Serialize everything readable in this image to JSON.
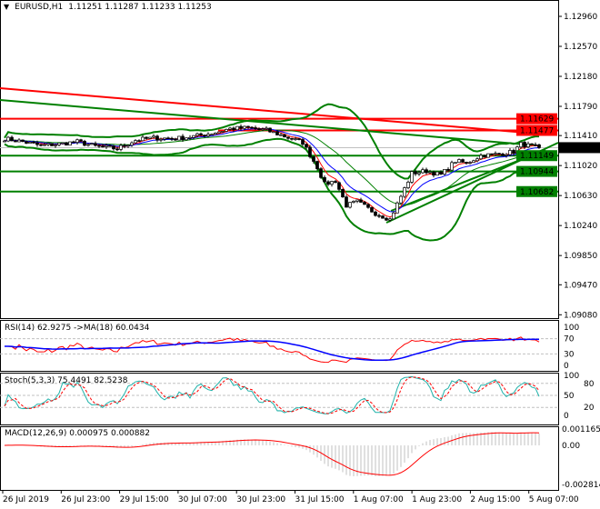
{
  "header": {
    "symbol": "EURUSD,H1",
    "ohlc": "1.11251 1.11287 1.11233 1.11253",
    "menu_icon": "triangle-down-icon"
  },
  "price_axis": {
    "ticks": [
      "1.12960",
      "1.12570",
      "1.12180",
      "1.11790",
      "1.11410",
      "1.11020",
      "1.10630",
      "1.10240",
      "1.09850",
      "1.09470",
      "1.09080"
    ],
    "tick_values": [
      1.1296,
      1.1257,
      1.1218,
      1.1179,
      1.1141,
      1.1102,
      1.1063,
      1.1024,
      1.0985,
      1.0947,
      1.0908
    ]
  },
  "levels": [
    {
      "label": "1.11629",
      "value": 1.11629,
      "color": "#ff0000"
    },
    {
      "label": "1.11477",
      "value": 1.11477,
      "color": "#ff0000"
    },
    {
      "label": "1.11149",
      "value": 1.11149,
      "color": "#008000"
    },
    {
      "label": "1.10944",
      "value": 1.10944,
      "color": "#008000"
    },
    {
      "label": "1.10682",
      "value": 1.10682,
      "color": "#008000"
    }
  ],
  "current_price": {
    "label": "1.11253",
    "value": 1.11253
  },
  "price_path": [
    [
      0,
      1.1137
    ],
    [
      5,
      1.1133
    ],
    [
      10,
      1.1128
    ],
    [
      15,
      1.113
    ],
    [
      20,
      1.1133
    ],
    [
      25,
      1.1127
    ],
    [
      31,
      1.1124
    ],
    [
      36,
      1.1135
    ],
    [
      41,
      1.1138
    ],
    [
      47,
      1.1137
    ],
    [
      52,
      1.114
    ],
    [
      57,
      1.1144
    ],
    [
      62,
      1.115
    ],
    [
      67,
      1.1151
    ],
    [
      72,
      1.1148
    ],
    [
      77,
      1.114
    ],
    [
      82,
      1.1132
    ],
    [
      86,
      1.11
    ],
    [
      88,
      1.1078
    ],
    [
      91,
      1.1082
    ],
    [
      94,
      1.105
    ],
    [
      97,
      1.1055
    ],
    [
      102,
      1.104
    ],
    [
      106,
      1.1032
    ],
    [
      109,
      1.1062
    ],
    [
      112,
      1.1092
    ],
    [
      116,
      1.1095
    ],
    [
      120,
      1.109
    ],
    [
      124,
      1.1108
    ],
    [
      127,
      1.1105
    ],
    [
      131,
      1.1115
    ],
    [
      136,
      1.1117
    ],
    [
      140,
      1.112
    ],
    [
      142,
      1.113
    ],
    [
      147,
      1.1125
    ]
  ],
  "rsi": {
    "label": "RSI(14) 62.9275  ->MA(18) 60.0434",
    "ticks": [
      "100",
      "70",
      "30",
      "0"
    ]
  },
  "stoch": {
    "label": "Stoch(5,3,3) 75.4491 82.5238",
    "ticks": [
      "100",
      "80",
      "50",
      "20",
      "0"
    ]
  },
  "macd": {
    "label": "MACD(12,26,9) 0.000975 0.000882",
    "ticks": [
      "0.001165",
      "0.00",
      "-0.002814"
    ]
  },
  "time_axis": [
    "26 Jul 2019",
    "26 Jul 23:00",
    "29 Jul 15:00",
    "30 Jul 07:00",
    "30 Jul 23:00",
    "31 Jul 15:00",
    "1 Aug 07:00",
    "1 Aug 23:00",
    "2 Aug 15:00",
    "5 Aug 07:00"
  ],
  "colors": {
    "bull_bear": "#000000",
    "bands": "#008000",
    "rsi": "#ff0000",
    "rsi_ma": "#0000ff",
    "stoch_main": "#20b2aa",
    "stoch_signal": "#ff0000",
    "macd_signal": "#ff0000",
    "macd_hist": "#c0c0c0"
  }
}
